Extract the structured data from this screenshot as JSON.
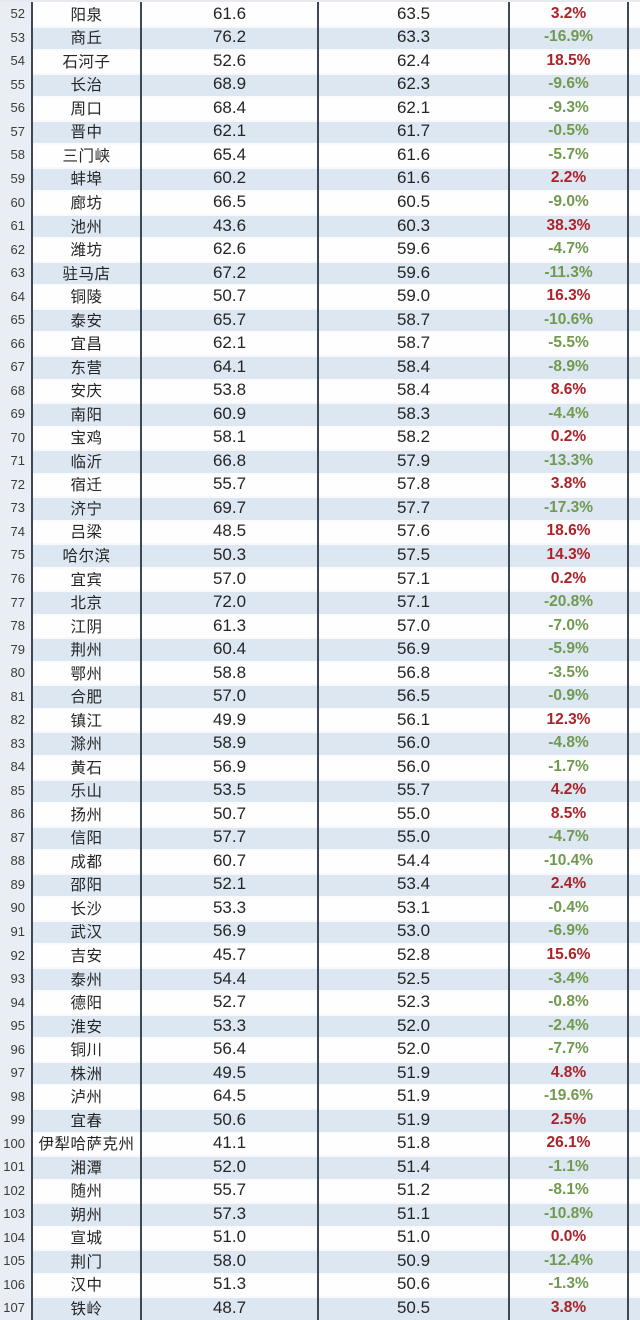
{
  "colors": {
    "row_stripe": "#dce7f2",
    "row_plain": "#fefefe",
    "rank_gutter_bg": "#e9eef4",
    "column_rule": "#3d4854",
    "positive_change": "#ab2329",
    "negative_change": "#71994f",
    "value_text": "#252525"
  },
  "chart_data": {
    "type": "table",
    "columns": [
      "rank",
      "city",
      "value1",
      "value2",
      "change_pct"
    ],
    "rows": [
      [
        52,
        "阳泉",
        "61.6",
        "63.5",
        "3.2%"
      ],
      [
        53,
        "商丘",
        "76.2",
        "63.3",
        "-16.9%"
      ],
      [
        54,
        "石河子",
        "52.6",
        "62.4",
        "18.5%"
      ],
      [
        55,
        "长治",
        "68.9",
        "62.3",
        "-9.6%"
      ],
      [
        56,
        "周口",
        "68.4",
        "62.1",
        "-9.3%"
      ],
      [
        57,
        "晋中",
        "62.1",
        "61.7",
        "-0.5%"
      ],
      [
        58,
        "三门峡",
        "65.4",
        "61.6",
        "-5.7%"
      ],
      [
        59,
        "蚌埠",
        "60.2",
        "61.6",
        "2.2%"
      ],
      [
        60,
        "廊坊",
        "66.5",
        "60.5",
        "-9.0%"
      ],
      [
        61,
        "池州",
        "43.6",
        "60.3",
        "38.3%"
      ],
      [
        62,
        "潍坊",
        "62.6",
        "59.6",
        "-4.7%"
      ],
      [
        63,
        "驻马店",
        "67.2",
        "59.6",
        "-11.3%"
      ],
      [
        64,
        "铜陵",
        "50.7",
        "59.0",
        "16.3%"
      ],
      [
        65,
        "泰安",
        "65.7",
        "58.7",
        "-10.6%"
      ],
      [
        66,
        "宜昌",
        "62.1",
        "58.7",
        "-5.5%"
      ],
      [
        67,
        "东营",
        "64.1",
        "58.4",
        "-8.9%"
      ],
      [
        68,
        "安庆",
        "53.8",
        "58.4",
        "8.6%"
      ],
      [
        69,
        "南阳",
        "60.9",
        "58.3",
        "-4.4%"
      ],
      [
        70,
        "宝鸡",
        "58.1",
        "58.2",
        "0.2%"
      ],
      [
        71,
        "临沂",
        "66.8",
        "57.9",
        "-13.3%"
      ],
      [
        72,
        "宿迁",
        "55.7",
        "57.8",
        "3.8%"
      ],
      [
        73,
        "济宁",
        "69.7",
        "57.7",
        "-17.3%"
      ],
      [
        74,
        "吕梁",
        "48.5",
        "57.6",
        "18.6%"
      ],
      [
        75,
        "哈尔滨",
        "50.3",
        "57.5",
        "14.3%"
      ],
      [
        76,
        "宜宾",
        "57.0",
        "57.1",
        "0.2%"
      ],
      [
        77,
        "北京",
        "72.0",
        "57.1",
        "-20.8%"
      ],
      [
        78,
        "江阴",
        "61.3",
        "57.0",
        "-7.0%"
      ],
      [
        79,
        "荆州",
        "60.4",
        "56.9",
        "-5.9%"
      ],
      [
        80,
        "鄂州",
        "58.8",
        "56.8",
        "-3.5%"
      ],
      [
        81,
        "合肥",
        "57.0",
        "56.5",
        "-0.9%"
      ],
      [
        82,
        "镇江",
        "49.9",
        "56.1",
        "12.3%"
      ],
      [
        83,
        "滁州",
        "58.9",
        "56.0",
        "-4.8%"
      ],
      [
        84,
        "黄石",
        "56.9",
        "56.0",
        "-1.7%"
      ],
      [
        85,
        "乐山",
        "53.5",
        "55.7",
        "4.2%"
      ],
      [
        86,
        "扬州",
        "50.7",
        "55.0",
        "8.5%"
      ],
      [
        87,
        "信阳",
        "57.7",
        "55.0",
        "-4.7%"
      ],
      [
        88,
        "成都",
        "60.7",
        "54.4",
        "-10.4%"
      ],
      [
        89,
        "邵阳",
        "52.1",
        "53.4",
        "2.4%"
      ],
      [
        90,
        "长沙",
        "53.3",
        "53.1",
        "-0.4%"
      ],
      [
        91,
        "武汉",
        "56.9",
        "53.0",
        "-6.9%"
      ],
      [
        92,
        "吉安",
        "45.7",
        "52.8",
        "15.6%"
      ],
      [
        93,
        "泰州",
        "54.4",
        "52.5",
        "-3.4%"
      ],
      [
        94,
        "德阳",
        "52.7",
        "52.3",
        "-0.8%"
      ],
      [
        95,
        "淮安",
        "53.3",
        "52.0",
        "-2.4%"
      ],
      [
        96,
        "铜川",
        "56.4",
        "52.0",
        "-7.7%"
      ],
      [
        97,
        "株洲",
        "49.5",
        "51.9",
        "4.8%"
      ],
      [
        98,
        "泸州",
        "64.5",
        "51.9",
        "-19.6%"
      ],
      [
        99,
        "宜春",
        "50.6",
        "51.9",
        "2.5%"
      ],
      [
        100,
        "伊犁哈萨克州",
        "41.1",
        "51.8",
        "26.1%"
      ],
      [
        101,
        "湘潭",
        "52.0",
        "51.4",
        "-1.1%"
      ],
      [
        102,
        "随州",
        "55.7",
        "51.2",
        "-8.1%"
      ],
      [
        103,
        "朔州",
        "57.3",
        "51.1",
        "-10.8%"
      ],
      [
        104,
        "宣城",
        "51.0",
        "51.0",
        "0.0%"
      ],
      [
        105,
        "荆门",
        "58.0",
        "50.9",
        "-12.4%"
      ],
      [
        106,
        "汉中",
        "51.3",
        "50.6",
        "-1.3%"
      ],
      [
        107,
        "铁岭",
        "48.7",
        "50.5",
        "3.8%"
      ]
    ]
  }
}
